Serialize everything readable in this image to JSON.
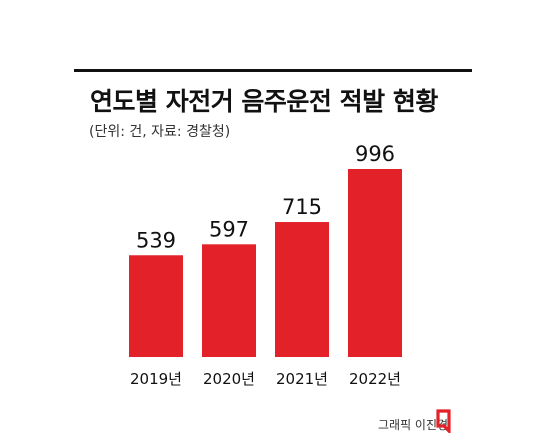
{
  "header": {
    "title": "연도별 자전거 음주운전 적발 현황",
    "subtitle": "(단위: 건, 자료: 경찰청)"
  },
  "footer": {
    "credit": "그래픽 이진경",
    "logo_icon": "publisher-logo-icon"
  },
  "colors": {
    "bar": "#e32129",
    "logo": "#e32129",
    "text": "#111111"
  },
  "chart_data": {
    "type": "bar",
    "title": "연도별 자전거 음주운전 적발 현황",
    "subtitle": "(단위: 건, 자료: 경찰청)",
    "categories": [
      "2019년",
      "2020년",
      "2021년",
      "2022년"
    ],
    "values": [
      539,
      597,
      715,
      996
    ],
    "data_labels": [
      "539",
      "597",
      "715",
      "996"
    ],
    "xlabel": "",
    "ylabel": "",
    "ylim": [
      0,
      1100
    ],
    "grid": false,
    "legend": "none"
  }
}
